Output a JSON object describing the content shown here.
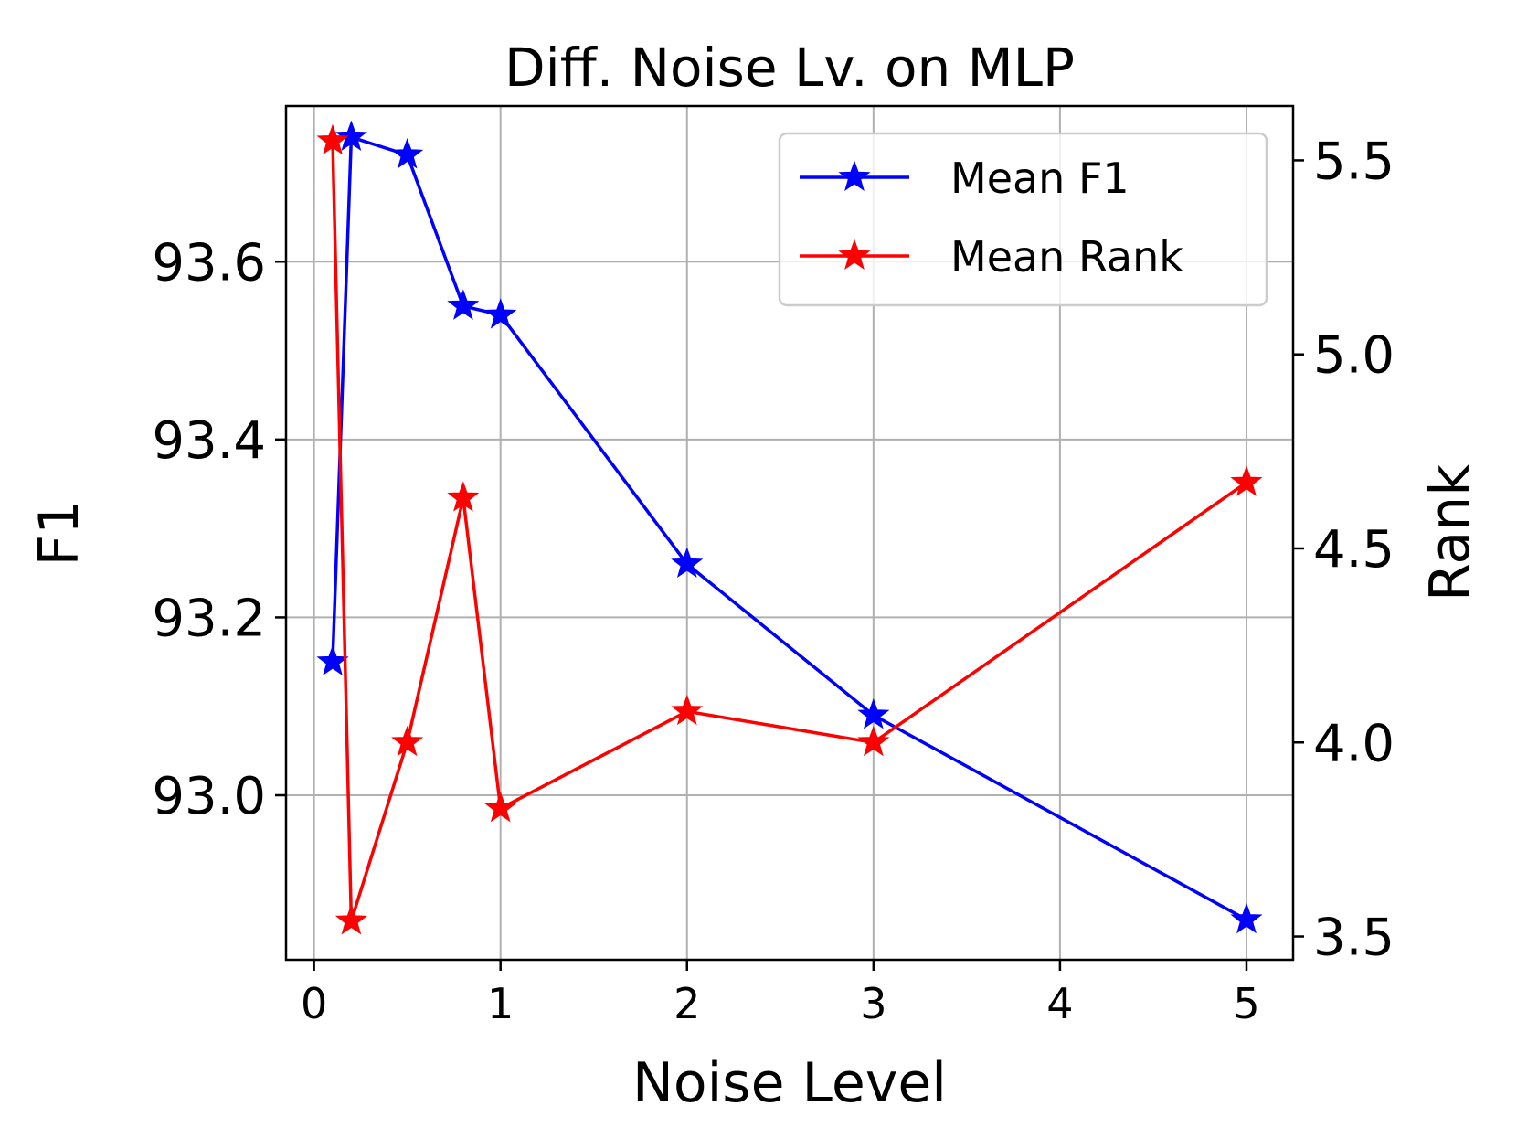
{
  "chart_data": {
    "type": "line",
    "title": "Diff. Noise Lv. on MLP",
    "xlabel": "Noise Level",
    "ylabel_left": "F1",
    "ylabel_right": "Rank",
    "xlim": [
      -0.15,
      5.25
    ],
    "ylim_left": [
      92.815,
      93.775
    ],
    "ylim_right": [
      3.44,
      5.64
    ],
    "x_ticks": [
      0,
      1,
      2,
      3,
      4,
      5
    ],
    "x_tick_labels": [
      "0",
      "1",
      "2",
      "3",
      "4",
      "5"
    ],
    "y_left_ticks": [
      93.0,
      93.2,
      93.4,
      93.6
    ],
    "y_left_tick_labels": [
      "93.0",
      "93.2",
      "93.4",
      "93.6"
    ],
    "y_right_ticks": [
      3.5,
      4.0,
      4.5,
      5.0,
      5.5
    ],
    "y_right_tick_labels": [
      "3.5",
      "4.0",
      "4.5",
      "5.0",
      "5.5"
    ],
    "grid": true,
    "legend_position": "top-right",
    "series": [
      {
        "name": "Mean F1",
        "axis": "left",
        "color": "#0000ff",
        "marker": "star",
        "x": [
          0.1,
          0.2,
          0.5,
          0.8,
          1,
          2,
          3,
          5
        ],
        "values": [
          93.15,
          93.74,
          93.72,
          93.55,
          93.54,
          93.26,
          93.09,
          92.86
        ]
      },
      {
        "name": "Mean Rank",
        "axis": "right",
        "color": "#ff0000",
        "marker": "star",
        "x": [
          0.1,
          0.2,
          0.5,
          0.8,
          1,
          2,
          3,
          5
        ],
        "values": [
          5.55,
          3.54,
          4.0,
          4.63,
          3.83,
          4.08,
          4.0,
          4.67
        ]
      }
    ]
  }
}
